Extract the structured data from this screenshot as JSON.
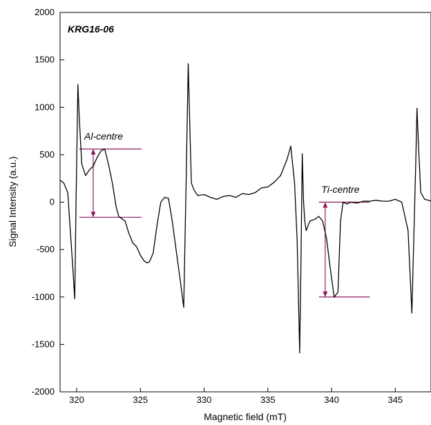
{
  "chart_data": {
    "type": "line",
    "title": "",
    "xlabel": "Magnetic field (mT)",
    "ylabel": "Signal Intensity (a.u.)",
    "xlim": [
      318.7,
      347.8
    ],
    "ylim": [
      -2000,
      2000
    ],
    "xticks": [
      320,
      325,
      330,
      335,
      340,
      345
    ],
    "yticks": [
      -2000,
      -1500,
      -1000,
      -500,
      0,
      500,
      1000,
      1500,
      2000
    ],
    "grid": false,
    "legend": "none",
    "line_color": "#000000",
    "annotation_color": "#8b1a5e",
    "sample_label": "KRG16-06",
    "series": [
      {
        "x": [
          318.7,
          319.0,
          319.3,
          319.5,
          319.7,
          319.85,
          319.95,
          320.1,
          320.2,
          320.4,
          320.7,
          321.0,
          321.3,
          321.6,
          321.9,
          322.2,
          322.5,
          322.8,
          323.1,
          323.3,
          323.5,
          323.8,
          324.1,
          324.4,
          324.7,
          325.0,
          325.3,
          325.5,
          325.7,
          326.0,
          326.3,
          326.6,
          326.9,
          327.2,
          327.5,
          327.8,
          328.1,
          328.4,
          328.6,
          328.75,
          328.9,
          329.0,
          329.2,
          329.5,
          330.0,
          330.5,
          331.0,
          331.5,
          332.0,
          332.5,
          333.0,
          333.5,
          334.0,
          334.5,
          335.0,
          335.5,
          336.0,
          336.5,
          336.8,
          337.1,
          337.3,
          337.5,
          337.6,
          337.7,
          337.8,
          337.9,
          338.0,
          338.3,
          338.7,
          339.0,
          339.3,
          339.6,
          339.9,
          340.2,
          340.5,
          340.7,
          340.9,
          341.2,
          341.5,
          342.0,
          342.5,
          343.0,
          343.5,
          344.0,
          344.5,
          345.0,
          345.5,
          346.0,
          346.3,
          346.6,
          346.7,
          346.85,
          347.0,
          347.3,
          347.6,
          347.8
        ],
        "y": [
          230,
          200,
          100,
          -300,
          -700,
          -1020,
          0,
          1240,
          900,
          400,
          280,
          340,
          380,
          470,
          540,
          560,
          400,
          200,
          -50,
          -150,
          -170,
          -200,
          -330,
          -430,
          -470,
          -560,
          -620,
          -640,
          -630,
          -540,
          -250,
          0,
          50,
          40,
          -200,
          -500,
          -800,
          -1110,
          300,
          1460,
          700,
          200,
          130,
          70,
          80,
          50,
          30,
          60,
          70,
          50,
          90,
          80,
          100,
          150,
          160,
          210,
          280,
          450,
          590,
          200,
          -400,
          -1590,
          -600,
          510,
          0,
          -200,
          -300,
          -200,
          -180,
          -150,
          -200,
          -380,
          -700,
          -1000,
          -950,
          -200,
          0,
          -20,
          0,
          -10,
          10,
          10,
          20,
          10,
          10,
          30,
          0,
          -300,
          -1170,
          400,
          990,
          500,
          100,
          30,
          20,
          10
        ]
      }
    ],
    "annotations": [
      {
        "label": "Al-centre",
        "x_range": [
          320.2,
          325.1
        ],
        "y_top": 560,
        "y_bottom": -160,
        "arrow_x": 321.3,
        "label_x": 320.6,
        "label_y": 660
      },
      {
        "label": "Ti-centre",
        "x_range": [
          339.0,
          343.0
        ],
        "y_top": 0,
        "y_bottom": -1000,
        "arrow_x": 339.5,
        "label_x": 339.2,
        "label_y": 100
      }
    ]
  }
}
